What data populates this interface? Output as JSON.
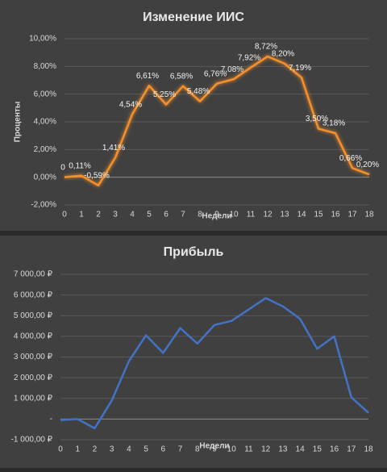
{
  "chart_data": [
    {
      "type": "line",
      "title": "Изменение ИИС",
      "x_label": "Недели",
      "y_label": "Проценты",
      "x": [
        0,
        1,
        2,
        3,
        4,
        5,
        6,
        7,
        8,
        9,
        10,
        11,
        12,
        13,
        14,
        15,
        16,
        17,
        18
      ],
      "values": [
        0,
        0.11,
        -0.59,
        1.41,
        4.54,
        6.61,
        5.25,
        6.58,
        5.48,
        6.76,
        7.08,
        7.92,
        8.72,
        8.2,
        7.19,
        3.5,
        3.18,
        0.66,
        0.2
      ],
      "value_labels": [
        "0",
        "0,11%",
        "-0,59%",
        "1,41%",
        "4,54%",
        "6,61%",
        "5,25%",
        "6,58%",
        "5,48%",
        "6,76%",
        "7,08%",
        "7,92%",
        "8,72%",
        "8,20%",
        "7,19%",
        "3,50%",
        "3,18%",
        "0,66%",
        "0,20%"
      ],
      "color": "#f5902c",
      "xlim": [
        0,
        18
      ],
      "xticks": [
        0,
        1,
        2,
        3,
        4,
        5,
        6,
        7,
        8,
        9,
        10,
        11,
        12,
        13,
        14,
        15,
        16,
        17,
        18
      ],
      "ylim": [
        -2,
        10
      ],
      "yticks": [
        {
          "value": -2,
          "label": "-2,00%"
        },
        {
          "value": 0,
          "label": "0,00%"
        },
        {
          "value": 2,
          "label": "2,00%"
        },
        {
          "value": 4,
          "label": "4,00%"
        },
        {
          "value": 6,
          "label": "6,00%"
        },
        {
          "value": 8,
          "label": "8,00%"
        },
        {
          "value": 10,
          "label": "10,00%"
        }
      ],
      "grid": true
    },
    {
      "type": "line",
      "title": "Прибыль",
      "x_label": "Недели",
      "x": [
        0,
        1,
        2,
        3,
        4,
        5,
        6,
        7,
        8,
        9,
        10,
        11,
        12,
        13,
        14,
        15,
        16,
        17,
        18
      ],
      "values": [
        -50,
        0,
        -450,
        900,
        2800,
        4050,
        3200,
        4400,
        3650,
        4550,
        4750,
        5300,
        5850,
        5450,
        4850,
        3400,
        4000,
        1050,
        300
      ],
      "color": "#4472c4",
      "xlim": [
        0,
        18
      ],
      "xticks": [
        0,
        1,
        2,
        3,
        4,
        5,
        6,
        7,
        8,
        9,
        10,
        11,
        12,
        13,
        14,
        15,
        16,
        17,
        18
      ],
      "ylim": [
        -1000,
        7000
      ],
      "yticks": [
        {
          "value": -1000,
          "label": "-1 000,00 ₽"
        },
        {
          "value": 0,
          "label": "-"
        },
        {
          "value": 1000,
          "label": "1 000,00 ₽"
        },
        {
          "value": 2000,
          "label": "2 000,00 ₽"
        },
        {
          "value": 3000,
          "label": "3 000,00 ₽"
        },
        {
          "value": 4000,
          "label": "4 000,00 ₽"
        },
        {
          "value": 5000,
          "label": "5 000,00 ₽"
        },
        {
          "value": 6000,
          "label": "6 000,00 ₽"
        },
        {
          "value": 7000,
          "label": "7 000,00 ₽"
        }
      ],
      "grid": true
    }
  ]
}
